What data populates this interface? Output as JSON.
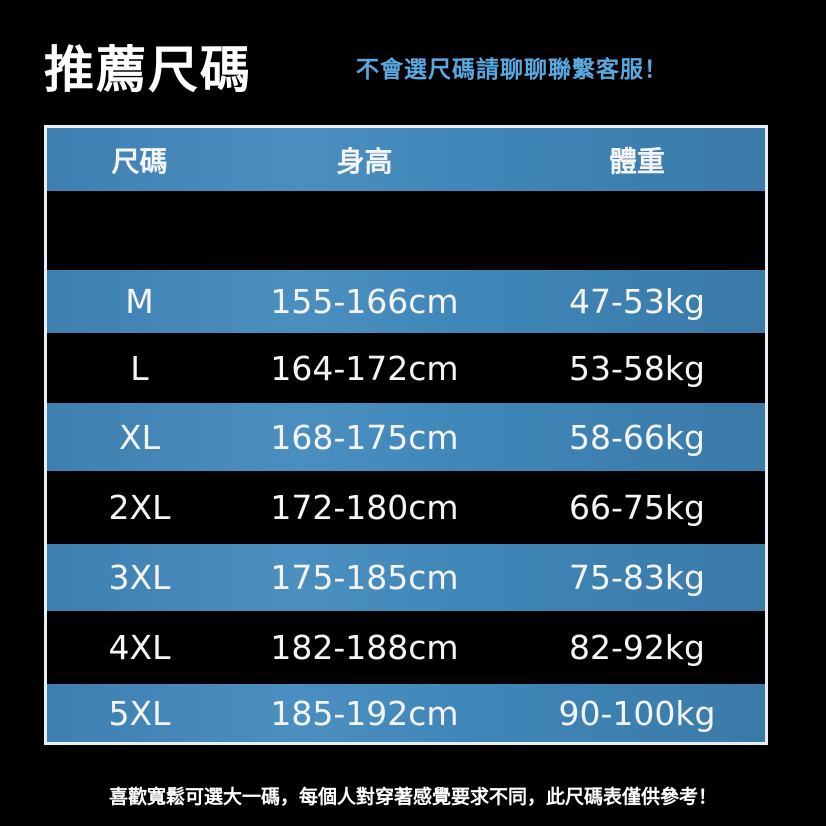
{
  "title": "推薦尺碼",
  "subtitle": "不會選尺碼請聊聊聯繫客服！",
  "table": {
    "headers": [
      "尺碼",
      "身高",
      "體重"
    ],
    "rows": [
      {
        "size": "",
        "height": "",
        "weight": ""
      },
      {
        "size": "M",
        "height": "155-166cm",
        "weight": "47-53kg"
      },
      {
        "size": "L",
        "height": "164-172cm",
        "weight": "53-58kg"
      },
      {
        "size": "XL",
        "height": "168-175cm",
        "weight": "58-66kg"
      },
      {
        "size": "2XL",
        "height": "172-180cm",
        "weight": "66-75kg"
      },
      {
        "size": "3XL",
        "height": "175-185cm",
        "weight": "75-83kg"
      },
      {
        "size": "4XL",
        "height": "182-188cm",
        "weight": "82-92kg"
      },
      {
        "size": "5XL",
        "height": "185-192cm",
        "weight": "90-100kg"
      }
    ]
  },
  "footer": "喜歡寬鬆可選大一碼，每個人對穿著感覺要求不同，此尺碼表僅供參考！",
  "colors": {
    "accent": "#5aa8e0",
    "row_blue": "#4585b8",
    "row_dark": "#000000"
  }
}
